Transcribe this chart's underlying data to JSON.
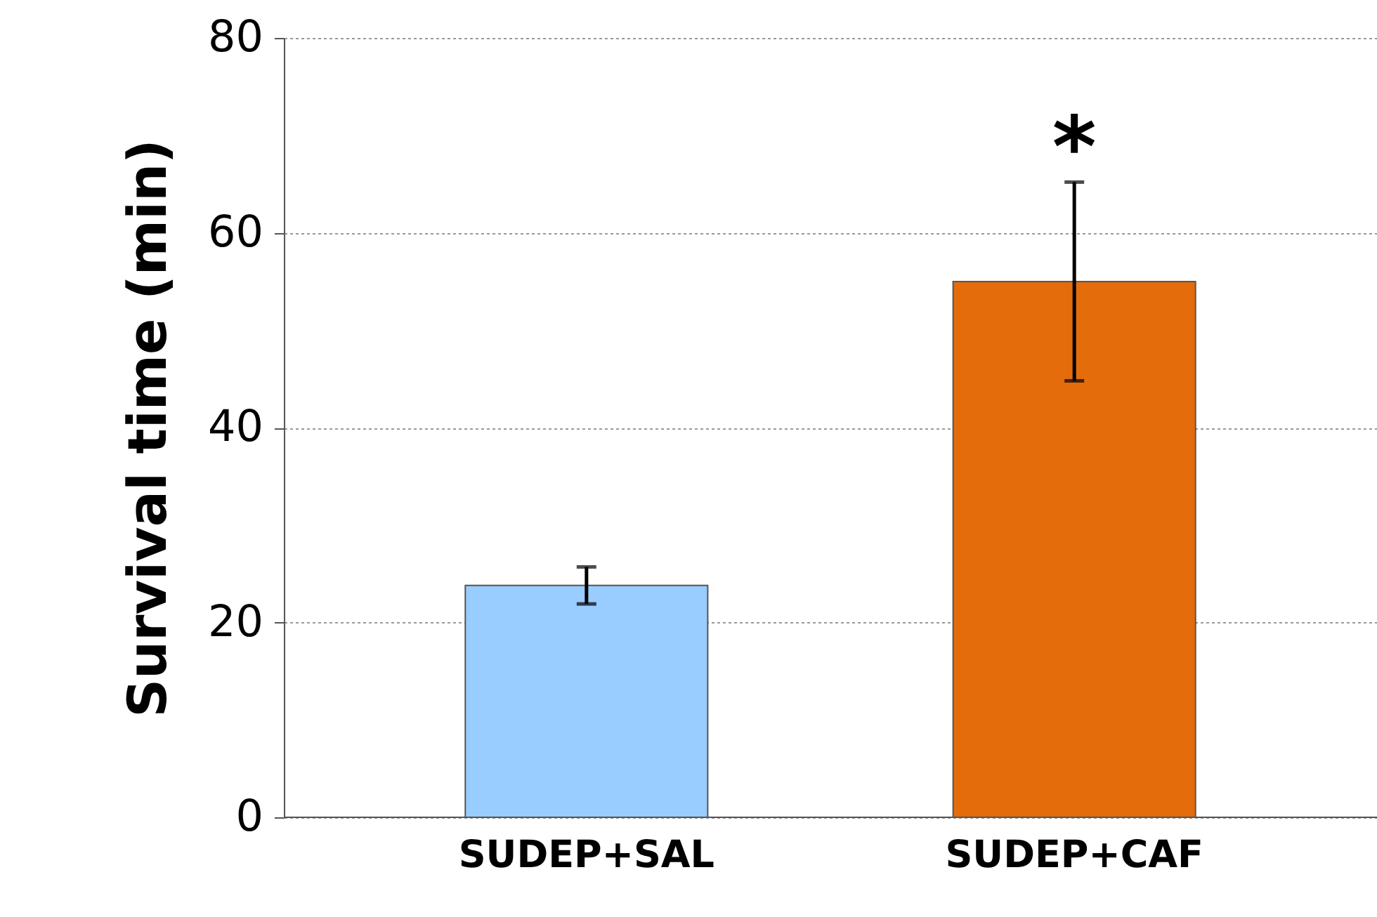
{
  "chart_data": {
    "type": "bar",
    "ylabel": "Survival time (min)",
    "categories": [
      "SUDEP+SAL",
      "SUDEP+CAF"
    ],
    "values": [
      23.8,
      55
    ],
    "colors": [
      "#99ccff",
      "#e46c0a"
    ],
    "errors": [
      1.9,
      10.2
    ],
    "ylim": [
      0,
      80
    ],
    "yticks": [
      0,
      20,
      40,
      60,
      80
    ],
    "grid": "y",
    "annotations": [
      "*"
    ]
  }
}
